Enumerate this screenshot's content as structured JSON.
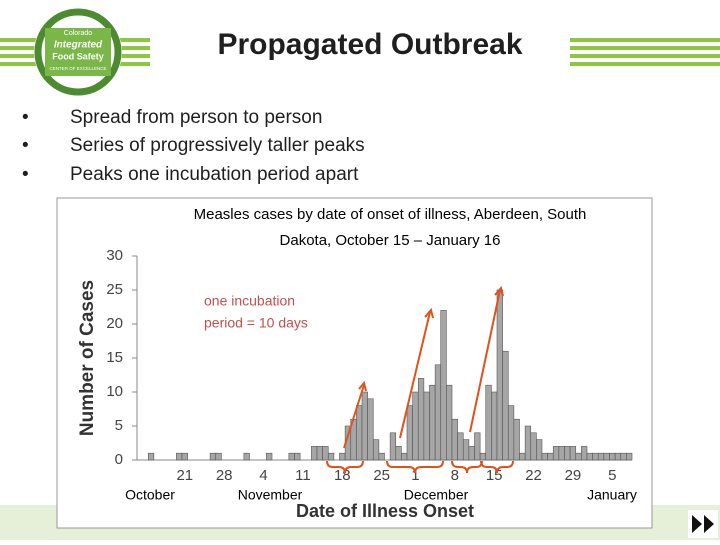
{
  "slide": {
    "title": "Propagated Outbreak",
    "bullets": [
      "Spread from person to person",
      "Series of progressively taller peaks",
      "Peaks one incubation period apart"
    ],
    "logo": [
      "Colorado",
      "Integrated",
      "Food Safety",
      "CENTER OF EXCELLENCE"
    ]
  },
  "chart_data": {
    "type": "bar",
    "title": [
      "Measles cases by date of onset of illness, Aberdeen, South",
      "Dakota, October 15 – January 16"
    ],
    "ylabel": "Number of Cases",
    "xlabel": "Date of Illness Onset",
    "months": [
      "October",
      "November",
      "December",
      "January"
    ],
    "annotation": [
      "one incubation",
      "period = 10 days"
    ],
    "color": "#a6a6a6",
    "categories": [
      null,
      null,
      null,
      null,
      null,
      null,
      null,
      null,
      "21",
      null,
      null,
      null,
      null,
      null,
      null,
      "28",
      null,
      null,
      null,
      null,
      null,
      null,
      "4",
      null,
      null,
      null,
      null,
      null,
      null,
      "11",
      null,
      null,
      null,
      null,
      null,
      null,
      "18",
      null,
      null,
      null,
      null,
      null,
      null,
      "25",
      null,
      null,
      null,
      null,
      null,
      "1",
      null,
      null,
      null,
      null,
      null,
      null,
      "8",
      null,
      null,
      null,
      null,
      null,
      null,
      "15",
      null,
      null,
      null,
      null,
      null,
      null,
      "22",
      null,
      null,
      null,
      null,
      null,
      null,
      "29",
      null,
      null,
      null,
      null,
      null,
      null,
      "5",
      null,
      null,
      null
    ],
    "values": [
      0,
      0,
      1,
      0,
      0,
      0,
      0,
      1,
      1,
      0,
      0,
      0,
      0,
      1,
      1,
      0,
      0,
      0,
      0,
      1,
      0,
      0,
      0,
      1,
      0,
      0,
      0,
      1,
      1,
      0,
      0,
      2,
      2,
      2,
      1,
      0,
      1,
      5,
      6,
      8,
      10,
      9,
      3,
      1,
      0,
      4,
      2,
      1,
      8,
      10,
      12,
      10,
      11,
      14,
      22,
      11,
      6,
      4,
      3,
      2,
      4,
      1,
      11,
      10,
      25,
      16,
      8,
      6,
      1,
      5,
      4,
      3,
      1,
      1,
      2,
      2,
      2,
      2,
      1,
      2,
      1,
      1,
      1,
      1,
      1,
      1,
      1,
      1
    ],
    "ylim": [
      0,
      30
    ],
    "yticks": [
      0,
      5,
      10,
      15,
      20,
      25,
      30
    ]
  }
}
